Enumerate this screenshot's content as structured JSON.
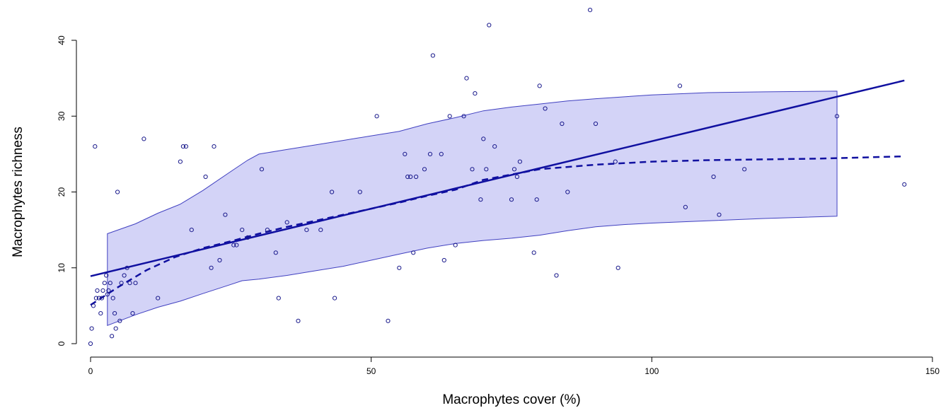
{
  "chart_data": {
    "type": "scatter",
    "title": "",
    "xlabel": "Macrophytes cover (%)",
    "ylabel": "Macrophytes richness",
    "xlim": [
      0,
      150
    ],
    "ylim": [
      0,
      44
    ],
    "x_ticks": [
      0,
      50,
      100,
      150
    ],
    "y_ticks": [
      0,
      10,
      20,
      30,
      40
    ],
    "x_tick_labels": [
      "0",
      "50",
      "100",
      "150"
    ],
    "y_tick_labels": [
      "0",
      "10",
      "20",
      "30",
      "40"
    ],
    "grid": false,
    "legend": "none",
    "colors": {
      "points": "#1a1a8c",
      "lines": "#1010a0",
      "band_fill": "#d3d3f7",
      "band_stroke": "#4040c0"
    },
    "points": [
      [
        0,
        0
      ],
      [
        0.2,
        2
      ],
      [
        0.5,
        5
      ],
      [
        0.8,
        26
      ],
      [
        1,
        6
      ],
      [
        1.2,
        7
      ],
      [
        1.5,
        6
      ],
      [
        1.8,
        4
      ],
      [
        2,
        6
      ],
      [
        2.2,
        7
      ],
      [
        2.5,
        8
      ],
      [
        2.8,
        9
      ],
      [
        3,
        6.5
      ],
      [
        3.2,
        7
      ],
      [
        3.5,
        8
      ],
      [
        3.8,
        1
      ],
      [
        4,
        6
      ],
      [
        4.3,
        4
      ],
      [
        4.5,
        2
      ],
      [
        4.8,
        20
      ],
      [
        5.2,
        3
      ],
      [
        5.5,
        8
      ],
      [
        6,
        9
      ],
      [
        6.5,
        10
      ],
      [
        7,
        8
      ],
      [
        7.5,
        4
      ],
      [
        8,
        8
      ],
      [
        9.5,
        27
      ],
      [
        12,
        6
      ],
      [
        16,
        24
      ],
      [
        16.5,
        26
      ],
      [
        17,
        26
      ],
      [
        18,
        15
      ],
      [
        20.5,
        22
      ],
      [
        21.5,
        10
      ],
      [
        22,
        26
      ],
      [
        23,
        11
      ],
      [
        24,
        17
      ],
      [
        25.5,
        13
      ],
      [
        26,
        13
      ],
      [
        27,
        15
      ],
      [
        28,
        14
      ],
      [
        30.5,
        23
      ],
      [
        31.5,
        15
      ],
      [
        33,
        12
      ],
      [
        33.5,
        6
      ],
      [
        35,
        16
      ],
      [
        37,
        3
      ],
      [
        38.5,
        15
      ],
      [
        41,
        15
      ],
      [
        43,
        20
      ],
      [
        43.5,
        6
      ],
      [
        48,
        20
      ],
      [
        51,
        30
      ],
      [
        53,
        3
      ],
      [
        55,
        10
      ],
      [
        56,
        25
      ],
      [
        56.5,
        22
      ],
      [
        57,
        22
      ],
      [
        57.5,
        12
      ],
      [
        58,
        22
      ],
      [
        59.5,
        23
      ],
      [
        60.5,
        25
      ],
      [
        61,
        38
      ],
      [
        62.5,
        25
      ],
      [
        63,
        11
      ],
      [
        64,
        30
      ],
      [
        65,
        13
      ],
      [
        66.5,
        30
      ],
      [
        67,
        35
      ],
      [
        68,
        23
      ],
      [
        68.5,
        33
      ],
      [
        69.5,
        19
      ],
      [
        70,
        27
      ],
      [
        70.5,
        23
      ],
      [
        71,
        42
      ],
      [
        72,
        26
      ],
      [
        75,
        19
      ],
      [
        75.5,
        23
      ],
      [
        76,
        22
      ],
      [
        76.5,
        24
      ],
      [
        79,
        12
      ],
      [
        79.5,
        19
      ],
      [
        80,
        34
      ],
      [
        81,
        31
      ],
      [
        83,
        9
      ],
      [
        84,
        29
      ],
      [
        85,
        20
      ],
      [
        89,
        44
      ],
      [
        90,
        29
      ],
      [
        93.5,
        24
      ],
      [
        94,
        10
      ],
      [
        105,
        34
      ],
      [
        106,
        18
      ],
      [
        111,
        22
      ],
      [
        112,
        17
      ],
      [
        116.5,
        23
      ],
      [
        133,
        30
      ],
      [
        145,
        21
      ]
    ],
    "linear_fit": [
      [
        0,
        8.9
      ],
      [
        145,
        34.7
      ]
    ],
    "smooth_fit": [
      [
        0,
        5.1
      ],
      [
        5,
        7.5
      ],
      [
        10,
        9.7
      ],
      [
        15,
        11.4
      ],
      [
        20,
        12.6
      ],
      [
        25,
        13.5
      ],
      [
        30,
        14.5
      ],
      [
        35,
        15.4
      ],
      [
        40,
        16.2
      ],
      [
        45,
        17.0
      ],
      [
        50,
        17.8
      ],
      [
        55,
        18.6
      ],
      [
        60,
        19.5
      ],
      [
        65,
        20.3
      ],
      [
        70,
        21.6
      ],
      [
        75,
        22.3
      ],
      [
        80,
        23.0
      ],
      [
        90,
        23.6
      ],
      [
        100,
        24.0
      ],
      [
        110,
        24.2
      ],
      [
        120,
        24.3
      ],
      [
        130,
        24.4
      ],
      [
        145,
        24.7
      ]
    ],
    "confidence_band_upper": [
      [
        3,
        14.5
      ],
      [
        8,
        15.8
      ],
      [
        12,
        17.2
      ],
      [
        16,
        18.4
      ],
      [
        20,
        20.2
      ],
      [
        25,
        22.7
      ],
      [
        28,
        24.2
      ],
      [
        30,
        25.0
      ],
      [
        35,
        25.6
      ],
      [
        40,
        26.2
      ],
      [
        45,
        26.8
      ],
      [
        50,
        27.4
      ],
      [
        55,
        28.0
      ],
      [
        60,
        29.0
      ],
      [
        65,
        29.8
      ],
      [
        70,
        30.7
      ],
      [
        75,
        31.2
      ],
      [
        80,
        31.6
      ],
      [
        85,
        32.0
      ],
      [
        90,
        32.3
      ],
      [
        100,
        32.8
      ],
      [
        110,
        33.1
      ],
      [
        120,
        33.2
      ],
      [
        133,
        33.3
      ]
    ],
    "confidence_band_lower": [
      [
        3,
        2.4
      ],
      [
        8,
        3.8
      ],
      [
        12,
        4.8
      ],
      [
        16,
        5.6
      ],
      [
        20,
        6.6
      ],
      [
        25,
        7.8
      ],
      [
        27,
        8.3
      ],
      [
        30,
        8.5
      ],
      [
        35,
        9.0
      ],
      [
        40,
        9.6
      ],
      [
        45,
        10.2
      ],
      [
        50,
        11.0
      ],
      [
        55,
        11.8
      ],
      [
        60,
        12.6
      ],
      [
        65,
        13.2
      ],
      [
        70,
        13.6
      ],
      [
        75,
        13.9
      ],
      [
        80,
        14.3
      ],
      [
        85,
        14.9
      ],
      [
        90,
        15.4
      ],
      [
        95,
        15.7
      ],
      [
        100,
        15.9
      ],
      [
        110,
        16.2
      ],
      [
        120,
        16.5
      ],
      [
        133,
        16.8
      ]
    ]
  }
}
